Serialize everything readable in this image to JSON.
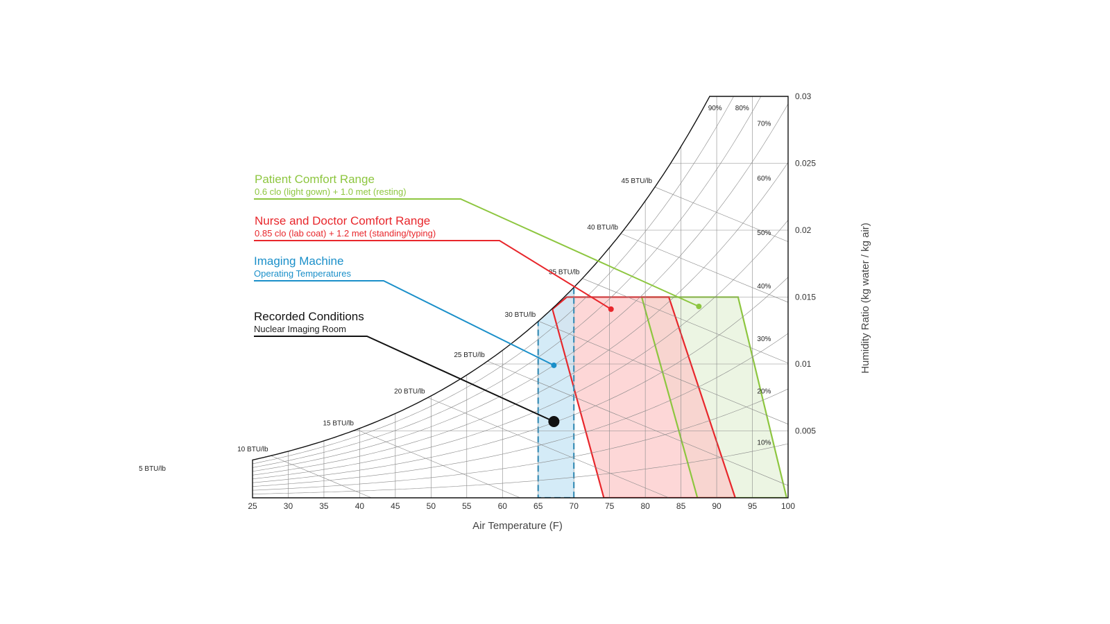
{
  "chart_data": {
    "type": "psychrometric",
    "xlabel": "Air Temperature (F)",
    "ylabel": "Humidity Ratio (kg water / kg air)",
    "xlim": [
      25,
      100
    ],
    "ylim": [
      0,
      0.03
    ],
    "x_ticks": [
      25,
      30,
      35,
      40,
      45,
      50,
      55,
      60,
      65,
      70,
      75,
      80,
      85,
      90,
      95,
      100
    ],
    "x_tick_labels": [
      "25",
      "30",
      "35",
      "40",
      "45",
      "50",
      "55",
      "60",
      "65",
      "70",
      "75",
      "80",
      "85",
      "90",
      "95",
      "100"
    ],
    "y_ticks": [
      0.005,
      0.01,
      0.015,
      0.02,
      0.025,
      0.03
    ],
    "y_tick_labels": [
      "0.005",
      "0.01",
      "0.015",
      "0.02",
      "0.025",
      "0.03"
    ],
    "rh_labels": [
      "10%",
      "20%",
      "30%",
      "40%",
      "50%",
      "60%",
      "70%",
      "80%",
      "90%"
    ],
    "rh_values": [
      10,
      20,
      30,
      40,
      50,
      60,
      70,
      80,
      90
    ],
    "enthalpy_labels": [
      "5 BTU/lb",
      "10 BTU/lb",
      "15 BTU/lb",
      "20 BTU/lb",
      "25 BTU/lb",
      "30 BTU/lb",
      "35 BTU/lb",
      "40 BTU/lb",
      "45 BTU/lb"
    ],
    "enthalpy_values": [
      5,
      10,
      15,
      20,
      25,
      30,
      35,
      40,
      45
    ],
    "regions": [
      {
        "title": "Patient Comfort Range",
        "subtitle": "0.6 clo (light gown) + 1.0 met (resting)",
        "color": "#8dc63f",
        "fill": "#e6f2d9",
        "polygon": [
          [
            79.5,
            0.015
          ],
          [
            93.0,
            0.015
          ],
          [
            99.8,
            0.0
          ],
          [
            87.3,
            0.0
          ]
        ],
        "marker": [
          87.5,
          0.0143
        ]
      },
      {
        "title": "Nurse and Doctor Comfort Range",
        "subtitle": "0.85 clo (lab coat) + 1.2 met (standing/typing)",
        "color": "#e8262b",
        "fill": "#fcc9c9",
        "polygon": [
          [
            69.0,
            0.015
          ],
          [
            83.3,
            0.015
          ],
          [
            92.6,
            0.0
          ],
          [
            74.2,
            0.0
          ],
          [
            67.0,
            0.0141
          ]
        ],
        "marker": [
          75.2,
          0.0141
        ]
      },
      {
        "title": "Imaging Machine",
        "subtitle": "Operating Temperatures",
        "color": "#1a8fc9",
        "fill": "#cde7f6",
        "polygon": [
          [
            65.0,
            0.0135
          ],
          [
            70.0,
            0.0158
          ],
          [
            70.0,
            0.0
          ],
          [
            65.0,
            0.0
          ]
        ],
        "marker": [
          67.2,
          0.0099
        ]
      },
      {
        "title": "Recorded Conditions",
        "subtitle": "Nuclear Imaging Room",
        "color": "#111111",
        "marker": [
          67.2,
          0.0057
        ]
      }
    ]
  }
}
